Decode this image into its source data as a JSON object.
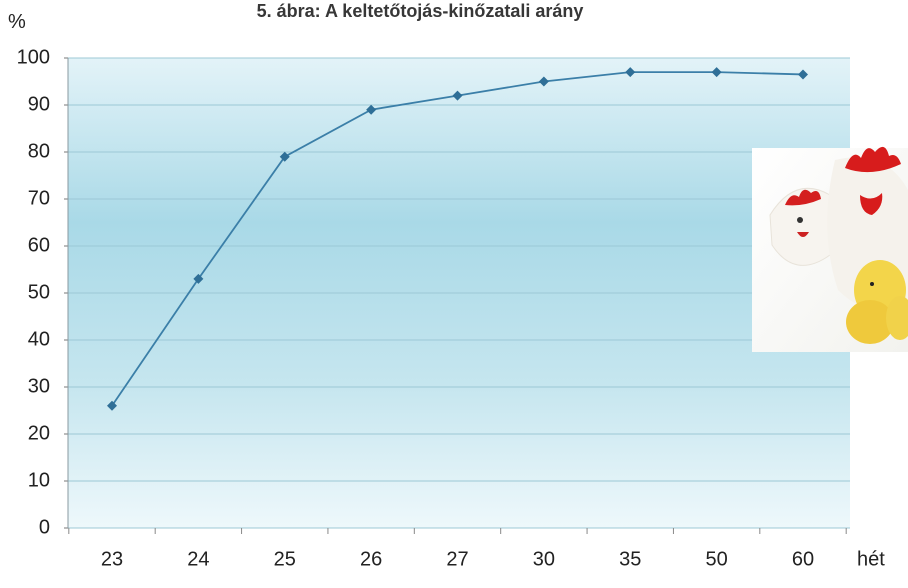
{
  "chart_data": {
    "type": "line",
    "title": "5. ábra: A keltetőtojás-kinőzatali arány",
    "ylabel": "%",
    "xlabel": "hét",
    "categories": [
      "23",
      "24",
      "25",
      "26",
      "27",
      "30",
      "35",
      "50",
      "60"
    ],
    "series": [
      {
        "values": [
          26,
          53,
          79,
          89,
          92,
          95,
          97,
          97,
          96.5
        ]
      }
    ],
    "ylim": [
      0,
      100
    ],
    "yticks": [
      "0",
      "10",
      "20",
      "30",
      "40",
      "50",
      "60",
      "70",
      "80",
      "90",
      "100"
    ],
    "grid": true,
    "colors": {
      "line": "#3b7fa8",
      "marker": "#2f6f97",
      "grid": "#9cc8d6",
      "plot_bg_top": "#dbeef4",
      "plot_bg_mid": "#9fd3e2"
    }
  }
}
